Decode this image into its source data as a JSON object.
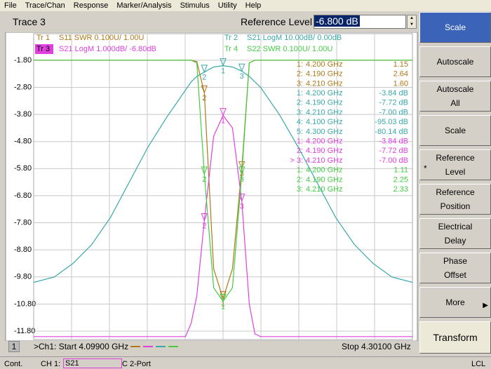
{
  "menu": [
    "File",
    "Trace/Chan",
    "Response",
    "Marker/Analysis",
    "Stimulus",
    "Utility",
    "Help"
  ],
  "toolbar": {
    "title": "Trace 3",
    "field_label": "Reference Level",
    "field_value": "-6.800 dB"
  },
  "chart_data": {
    "type": "line",
    "x": [
      4.099,
      4.11,
      4.12,
      4.13,
      4.14,
      4.15,
      4.16,
      4.17,
      4.175,
      4.18,
      4.183,
      4.186,
      4.19,
      4.195,
      4.2,
      4.205,
      4.21,
      4.214,
      4.217,
      4.22,
      4.225,
      4.23,
      4.24,
      4.25,
      4.26,
      4.27,
      4.28,
      4.29,
      4.301
    ],
    "xlim": [
      4.099,
      4.301
    ],
    "ylim": [
      -12.11,
      -0.82
    ],
    "yticks": [
      {
        "value": -1.8,
        "label": "-1.80"
      },
      {
        "value": -2.8,
        "label": "-2.80"
      },
      {
        "value": -3.8,
        "label": "-3.80"
      },
      {
        "value": -4.8,
        "label": "-4.80"
      },
      {
        "value": -5.8,
        "label": "-5.80"
      },
      {
        "value": -6.8,
        "label": "-6.80"
      },
      {
        "value": -7.8,
        "label": "-7.80"
      },
      {
        "value": -8.8,
        "label": "-8.80"
      },
      {
        "value": -9.8,
        "label": "-9.80"
      },
      {
        "value": -10.8,
        "label": "-10.80"
      },
      {
        "value": -11.8,
        "label": "-11.80"
      }
    ],
    "grid": true,
    "series": [
      {
        "name": "Tr 1",
        "desc": "S11 SWR 0.100U/  1.00U",
        "color": "#b07818",
        "values": [
          -1.8,
          -1.8,
          -1.8,
          -1.8,
          -1.8,
          -1.8,
          -1.8,
          -1.8,
          -1.8,
          -1.8,
          -1.8,
          -1.85,
          -3.0,
          -9.5,
          -10.6,
          -9.5,
          -5.8,
          -1.9,
          -1.8,
          -1.8,
          -1.8,
          -1.8,
          -1.8,
          -1.8,
          -1.8,
          -1.8,
          -1.8,
          -1.8,
          -1.8
        ],
        "markers": [
          {
            "label": "1",
            "x": 4.2
          },
          {
            "label": "2",
            "x": 4.19
          },
          {
            "label": "3",
            "x": 4.21
          }
        ]
      },
      {
        "name": "Tr 3",
        "desc": "S21 LogM 1.000dB/  -6.80dB",
        "color": "#e040e0",
        "active": true,
        "values": [
          -12.0,
          -12.0,
          -12.0,
          -12.0,
          -12.0,
          -12.0,
          -12.0,
          -12.0,
          -12.0,
          -12.0,
          -11.5,
          -10.5,
          -7.72,
          -4.6,
          -3.84,
          -4.3,
          -7.0,
          -10.8,
          -11.9,
          -12.0,
          -12.0,
          -12.0,
          -12.0,
          -12.0,
          -12.0,
          -12.0,
          -12.0,
          -12.0,
          -12.0
        ],
        "markers": [
          {
            "label": "1",
            "x": 4.2
          },
          {
            "label": "2",
            "x": 4.19
          },
          {
            "label": "3",
            "x": 4.21
          }
        ]
      },
      {
        "name": "Tr 2",
        "desc": "S21 LogM 10.00dB/  0.00dB",
        "color": "#3aa8a8",
        "values": [
          -10.0,
          -9.8,
          -9.3,
          -8.6,
          -7.6,
          -6.3,
          -5.0,
          -3.9,
          -3.4,
          -2.9,
          -2.6,
          -2.4,
          -2.24,
          -2.05,
          -2.0,
          -2.05,
          -2.2,
          -2.4,
          -2.6,
          -2.8,
          -3.3,
          -3.8,
          -5.0,
          -6.3,
          -7.6,
          -8.6,
          -9.3,
          -9.8,
          -10.0
        ],
        "markers": [
          {
            "label": "1",
            "x": 4.2
          },
          {
            "label": "2",
            "x": 4.19
          },
          {
            "label": "3",
            "x": 4.21
          }
        ]
      },
      {
        "name": "Tr 4",
        "desc": "S22 SWR 0.100U/  1.00U",
        "color": "#44cc44",
        "values": [
          -1.8,
          -1.8,
          -1.8,
          -1.8,
          -1.8,
          -1.8,
          -1.8,
          -1.8,
          -1.8,
          -1.8,
          -1.8,
          -1.9,
          -6.0,
          -10.2,
          -10.7,
          -10.2,
          -6.0,
          -1.9,
          -1.8,
          -1.8,
          -1.8,
          -1.8,
          -1.8,
          -1.8,
          -1.8,
          -1.8,
          -1.8,
          -1.8,
          -1.8
        ],
        "markers": [
          {
            "label": "1",
            "x": 4.2
          },
          {
            "label": "2",
            "x": 4.19
          },
          {
            "label": "3",
            "x": 4.21
          }
        ]
      }
    ]
  },
  "marker_table": [
    {
      "label": "1:",
      "freq": "4.200 GHz",
      "value": "1.15",
      "color": "#b07818"
    },
    {
      "label": "2:",
      "freq": "4.190 GHz",
      "value": "2.64",
      "color": "#b07818"
    },
    {
      "label": "3:",
      "freq": "4.210 GHz",
      "value": "1.60",
      "color": "#b07818"
    },
    {
      "label": "1:",
      "freq": "4.200 GHz",
      "value": "-3.84 dB",
      "color": "#3aa8a8"
    },
    {
      "label": "2:",
      "freq": "4.190 GHz",
      "value": "-7.72 dB",
      "color": "#3aa8a8"
    },
    {
      "label": "3:",
      "freq": "4.210 GHz",
      "value": "-7.00 dB",
      "color": "#3aa8a8"
    },
    {
      "label": "4:",
      "freq": "4.100 GHz",
      "value": "-95.03 dB",
      "color": "#3aa8a8"
    },
    {
      "label": "5:",
      "freq": "4.300 GHz",
      "value": "-80.14 dB",
      "color": "#3aa8a8"
    },
    {
      "label": "1:",
      "freq": "4.200 GHz",
      "value": "-3.84 dB",
      "color": "#e040e0"
    },
    {
      "label": "2:",
      "freq": "4.190 GHz",
      "value": "-7.72 dB",
      "color": "#e040e0"
    },
    {
      "label": "> 3:",
      "freq": "4.210 GHz",
      "value": "-7.00 dB",
      "color": "#e040e0"
    },
    {
      "label": "1:",
      "freq": "4.200 GHz",
      "value": "1.11",
      "color": "#44cc44"
    },
    {
      "label": "2:",
      "freq": "4.190 GHz",
      "value": "2.25",
      "color": "#44cc44"
    },
    {
      "label": "3:",
      "freq": "4.210 GHz",
      "value": "2.33",
      "color": "#44cc44"
    }
  ],
  "softkeys": [
    {
      "lines": [
        "Scale"
      ],
      "active": true
    },
    {
      "lines": [
        "Autoscale"
      ]
    },
    {
      "lines": [
        "Autoscale",
        "All"
      ]
    },
    {
      "lines": [
        "Scale"
      ]
    },
    {
      "lines": [
        "Reference",
        "Level"
      ],
      "prefix": "*"
    },
    {
      "lines": [
        "Reference",
        "Position"
      ]
    },
    {
      "lines": [
        "Electrical",
        "Delay"
      ]
    },
    {
      "lines": [
        "Phase",
        "Offset"
      ]
    },
    {
      "lines": [
        "More"
      ],
      "submenu": true
    },
    {
      "lines": [
        "Transform"
      ]
    }
  ],
  "footer": {
    "channel": "1",
    "start": ">Ch1: Start 4.09900 GHz",
    "stop": "Stop 4.30100 GHz"
  },
  "status": [
    "Cont.",
    "CH 1:",
    "S21",
    "C 2-Port",
    "LCL"
  ]
}
